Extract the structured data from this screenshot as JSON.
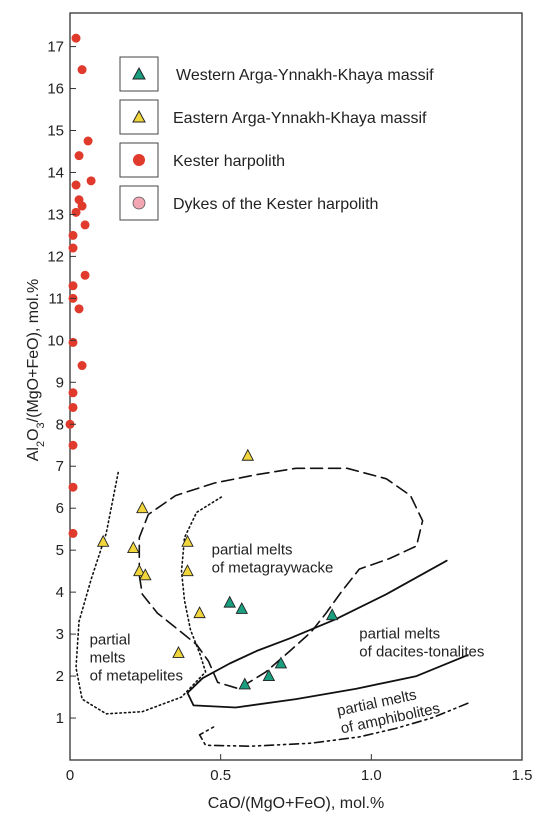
{
  "chart_data": {
    "type": "scatter",
    "xlabel": "CaO/(MgO+FeO), mol.%",
    "ylabel_parts": [
      "Al",
      "2",
      "O",
      "3",
      "/(MgO+FeO), mol.%"
    ],
    "xlim": [
      0,
      1.5
    ],
    "ylim": [
      0,
      17.8
    ],
    "x_ticks": [
      {
        "value": 0,
        "label": "0"
      },
      {
        "value": 0.5,
        "label": "0.5"
      },
      {
        "value": 1.0,
        "label": "1.0"
      },
      {
        "value": 1.5,
        "label": "1.5"
      }
    ],
    "y_ticks": [
      {
        "value": 1,
        "label": "1"
      },
      {
        "value": 2,
        "label": "2"
      },
      {
        "value": 3,
        "label": "3"
      },
      {
        "value": 4,
        "label": "4"
      },
      {
        "value": 5,
        "label": "5"
      },
      {
        "value": 6,
        "label": "6"
      },
      {
        "value": 7,
        "label": "7"
      },
      {
        "value": 8,
        "label": "8"
      },
      {
        "value": 9,
        "label": "9"
      },
      {
        "value": 10,
        "label": "10"
      },
      {
        "value": 11,
        "label": "11"
      },
      {
        "value": 12,
        "label": "12"
      },
      {
        "value": 13,
        "label": "13"
      },
      {
        "value": 14,
        "label": "14"
      },
      {
        "value": 15,
        "label": "15"
      },
      {
        "value": 16,
        "label": "16"
      },
      {
        "value": 17,
        "label": "17"
      }
    ],
    "legend_position": "top-right",
    "series": [
      {
        "name": "Western Arga-Ynnakh-Khaya massif",
        "marker": "triangle",
        "color": "#1a9e80",
        "points": [
          [
            0.53,
            3.75
          ],
          [
            0.57,
            3.6
          ],
          [
            0.87,
            3.45
          ],
          [
            0.7,
            2.3
          ],
          [
            0.66,
            2.0
          ],
          [
            0.58,
            1.8
          ]
        ]
      },
      {
        "name": "Eastern Arga-Ynnakh-Khaya massif",
        "marker": "triangle",
        "color": "#f0d53b",
        "points": [
          [
            0.59,
            7.25
          ],
          [
            0.24,
            6.0
          ],
          [
            0.11,
            5.2
          ],
          [
            0.39,
            5.2
          ],
          [
            0.21,
            5.05
          ],
          [
            0.23,
            4.5
          ],
          [
            0.25,
            4.4
          ],
          [
            0.39,
            4.5
          ],
          [
            0.43,
            3.5
          ],
          [
            0.36,
            2.55
          ]
        ]
      },
      {
        "name": "Kester harpolith",
        "marker": "circle",
        "color": "#e03a2c",
        "points": [
          [
            0.02,
            17.2
          ],
          [
            0.04,
            16.45
          ],
          [
            0.06,
            14.75
          ],
          [
            0.03,
            14.4
          ],
          [
            0.07,
            13.8
          ],
          [
            0.02,
            13.7
          ],
          [
            0.03,
            13.35
          ],
          [
            0.04,
            13.2
          ],
          [
            0.02,
            13.05
          ],
          [
            0.05,
            12.75
          ],
          [
            0.01,
            12.5
          ],
          [
            0.01,
            12.2
          ],
          [
            0.05,
            11.55
          ],
          [
            0.01,
            11.3
          ],
          [
            0.01,
            11.0
          ],
          [
            0.03,
            10.75
          ],
          [
            0.01,
            9.95
          ],
          [
            0.04,
            9.4
          ],
          [
            0.01,
            8.75
          ],
          [
            0.01,
            8.4
          ],
          [
            0.0,
            8.0
          ],
          [
            0.01,
            7.5
          ],
          [
            0.01,
            6.5
          ],
          [
            0.01,
            5.4
          ]
        ]
      },
      {
        "name": "Dykes of the Kester harpolith",
        "marker": "circle",
        "color": "#f2a7b3",
        "points": []
      }
    ],
    "fields": [
      {
        "labels": [
          "partial",
          "melts",
          "of metapelites"
        ],
        "style": "dotted",
        "points": [
          [
            0.16,
            6.85
          ],
          [
            0.12,
            5.4
          ],
          [
            0.07,
            4.3
          ],
          [
            0.03,
            3.3
          ],
          [
            0.02,
            2.2
          ],
          [
            0.04,
            1.45
          ],
          [
            0.12,
            1.1
          ],
          [
            0.24,
            1.15
          ],
          [
            0.37,
            1.5
          ],
          [
            0.45,
            2.1
          ],
          [
            0.43,
            2.55
          ],
          [
            0.4,
            3.1
          ],
          [
            0.38,
            3.8
          ],
          [
            0.37,
            4.5
          ],
          [
            0.38,
            5.3
          ],
          [
            0.42,
            5.9
          ],
          [
            0.51,
            6.3
          ]
        ]
      },
      {
        "labels": [
          "partial melts",
          "of metagraywacke"
        ],
        "style": "dashed",
        "points": [
          [
            0.23,
            4.4
          ],
          [
            0.23,
            5.3
          ],
          [
            0.26,
            5.85
          ],
          [
            0.35,
            6.3
          ],
          [
            0.48,
            6.6
          ],
          [
            0.62,
            6.8
          ],
          [
            0.75,
            6.95
          ],
          [
            0.92,
            6.95
          ],
          [
            1.05,
            6.7
          ],
          [
            1.13,
            6.3
          ],
          [
            1.17,
            5.7
          ],
          [
            1.15,
            5.1
          ],
          [
            1.06,
            4.8
          ],
          [
            0.96,
            4.55
          ],
          [
            0.9,
            4.0
          ],
          [
            0.85,
            3.5
          ],
          [
            0.8,
            3.05
          ],
          [
            0.73,
            2.6
          ],
          [
            0.65,
            2.1
          ],
          [
            0.56,
            1.7
          ],
          [
            0.49,
            1.85
          ],
          [
            0.46,
            2.35
          ],
          [
            0.42,
            2.75
          ],
          [
            0.36,
            3.1
          ],
          [
            0.29,
            3.5
          ],
          [
            0.24,
            3.95
          ],
          [
            0.23,
            4.4
          ]
        ]
      },
      {
        "labels": [
          "partial melts",
          "of dacites-tonalites"
        ],
        "style": "solid",
        "points": [
          [
            1.25,
            4.75
          ],
          [
            1.05,
            3.95
          ],
          [
            0.88,
            3.35
          ],
          [
            0.73,
            2.9
          ],
          [
            0.62,
            2.6
          ],
          [
            0.53,
            2.3
          ],
          [
            0.44,
            1.95
          ],
          [
            0.39,
            1.6
          ],
          [
            0.41,
            1.3
          ],
          [
            0.55,
            1.25
          ],
          [
            0.75,
            1.45
          ],
          [
            0.95,
            1.7
          ],
          [
            1.15,
            2.0
          ],
          [
            1.32,
            2.5
          ]
        ]
      },
      {
        "labels": [
          "partial melts",
          "of amphibolites"
        ],
        "style": "dashdot",
        "points": [
          [
            1.32,
            1.35
          ],
          [
            1.2,
            1.0
          ],
          [
            1.08,
            0.75
          ],
          [
            0.96,
            0.55
          ],
          [
            0.8,
            0.4
          ],
          [
            0.6,
            0.33
          ],
          [
            0.45,
            0.35
          ],
          [
            0.43,
            0.6
          ],
          [
            0.48,
            0.8
          ]
        ]
      }
    ],
    "field_label_anchors": [
      {
        "x": 0.065,
        "y": 2.75
      },
      {
        "x": 0.47,
        "y": 4.9
      },
      {
        "x": 0.96,
        "y": 2.9
      },
      {
        "x": 0.89,
        "y": 1.05
      }
    ]
  }
}
